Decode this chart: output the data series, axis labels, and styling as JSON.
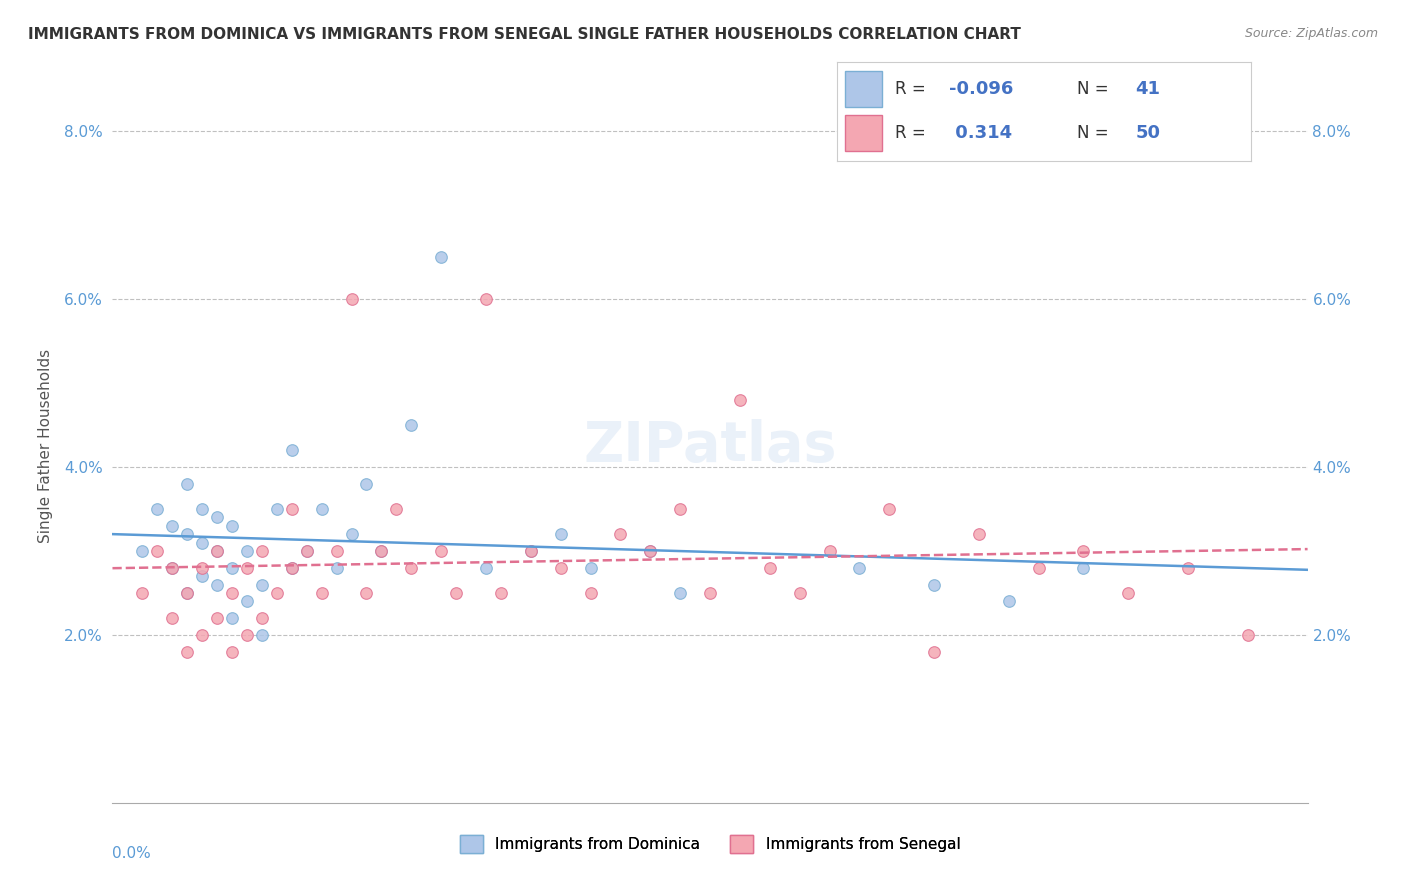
{
  "title": "IMMIGRANTS FROM DOMINICA VS IMMIGRANTS FROM SENEGAL SINGLE FATHER HOUSEHOLDS CORRELATION CHART",
  "source": "Source: ZipAtlas.com",
  "ylabel": "Single Father Households",
  "y_tick_labels": [
    "2.0%",
    "4.0%",
    "6.0%",
    "8.0%"
  ],
  "y_tick_values": [
    0.02,
    0.04,
    0.06,
    0.08
  ],
  "xlim": [
    0.0,
    0.08
  ],
  "ylim": [
    0.0,
    0.085
  ],
  "dominica_color": "#aec6e8",
  "dominica_edge": "#7bafd4",
  "dominica_line": "#5b9bd5",
  "senegal_color": "#f4a7b2",
  "senegal_edge": "#e07090",
  "senegal_line": "#e07090",
  "watermark": "ZIPatlas",
  "R_dominica": "-0.096",
  "N_dominica": "41",
  "R_senegal": "0.314",
  "N_senegal": "50",
  "dominica_x": [
    0.002,
    0.003,
    0.004,
    0.004,
    0.005,
    0.005,
    0.005,
    0.006,
    0.006,
    0.006,
    0.007,
    0.007,
    0.007,
    0.008,
    0.008,
    0.008,
    0.009,
    0.009,
    0.01,
    0.01,
    0.011,
    0.012,
    0.012,
    0.013,
    0.014,
    0.015,
    0.016,
    0.017,
    0.018,
    0.02,
    0.022,
    0.025,
    0.028,
    0.03,
    0.032,
    0.036,
    0.038,
    0.05,
    0.055,
    0.06,
    0.065
  ],
  "dominica_y": [
    0.03,
    0.035,
    0.028,
    0.033,
    0.025,
    0.032,
    0.038,
    0.027,
    0.031,
    0.035,
    0.026,
    0.03,
    0.034,
    0.022,
    0.028,
    0.033,
    0.024,
    0.03,
    0.02,
    0.026,
    0.035,
    0.028,
    0.042,
    0.03,
    0.035,
    0.028,
    0.032,
    0.038,
    0.03,
    0.045,
    0.065,
    0.028,
    0.03,
    0.032,
    0.028,
    0.03,
    0.025,
    0.028,
    0.026,
    0.024,
    0.028
  ],
  "senegal_x": [
    0.002,
    0.003,
    0.004,
    0.004,
    0.005,
    0.005,
    0.006,
    0.006,
    0.007,
    0.007,
    0.008,
    0.008,
    0.009,
    0.009,
    0.01,
    0.01,
    0.011,
    0.012,
    0.012,
    0.013,
    0.014,
    0.015,
    0.016,
    0.017,
    0.018,
    0.019,
    0.02,
    0.022,
    0.023,
    0.025,
    0.026,
    0.028,
    0.03,
    0.032,
    0.034,
    0.036,
    0.038,
    0.04,
    0.042,
    0.044,
    0.046,
    0.048,
    0.052,
    0.055,
    0.058,
    0.062,
    0.065,
    0.068,
    0.072,
    0.076
  ],
  "senegal_y": [
    0.025,
    0.03,
    0.022,
    0.028,
    0.018,
    0.025,
    0.02,
    0.028,
    0.022,
    0.03,
    0.018,
    0.025,
    0.02,
    0.028,
    0.022,
    0.03,
    0.025,
    0.028,
    0.035,
    0.03,
    0.025,
    0.03,
    0.06,
    0.025,
    0.03,
    0.035,
    0.028,
    0.03,
    0.025,
    0.06,
    0.025,
    0.03,
    0.028,
    0.025,
    0.032,
    0.03,
    0.035,
    0.025,
    0.048,
    0.028,
    0.025,
    0.03,
    0.035,
    0.018,
    0.032,
    0.028,
    0.03,
    0.025,
    0.028,
    0.02
  ]
}
